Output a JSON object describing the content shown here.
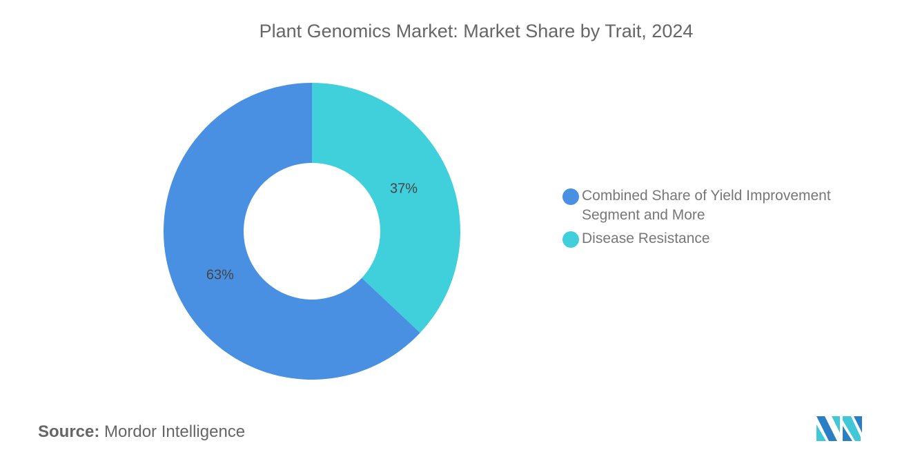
{
  "title": "Plant Genomics Market: Market Share by Trait, 2024",
  "chart_data": {
    "type": "pie",
    "donut": true,
    "title": "Plant Genomics Market: Market Share by Trait, 2024",
    "slices": [
      {
        "name": "Disease Resistance",
        "value": 37,
        "label": "37%",
        "color": "#40d0db"
      },
      {
        "name": "Combined Share of Yield Improvement Segment and More",
        "value": 63,
        "label": "63%",
        "color": "#4a90e2"
      }
    ],
    "legend_position": "right"
  },
  "legend": [
    {
      "label": "Combined Share of Yield Improvement Segment and More",
      "color": "#4a90e2"
    },
    {
      "label": "Disease Resistance",
      "color": "#40d0db"
    }
  ],
  "source": {
    "label": "Source:",
    "value": "Mordor Intelligence"
  },
  "logo": {
    "text": "Mordor Intelligence",
    "colors": [
      "#2a7fc4",
      "#40c8d8"
    ]
  }
}
